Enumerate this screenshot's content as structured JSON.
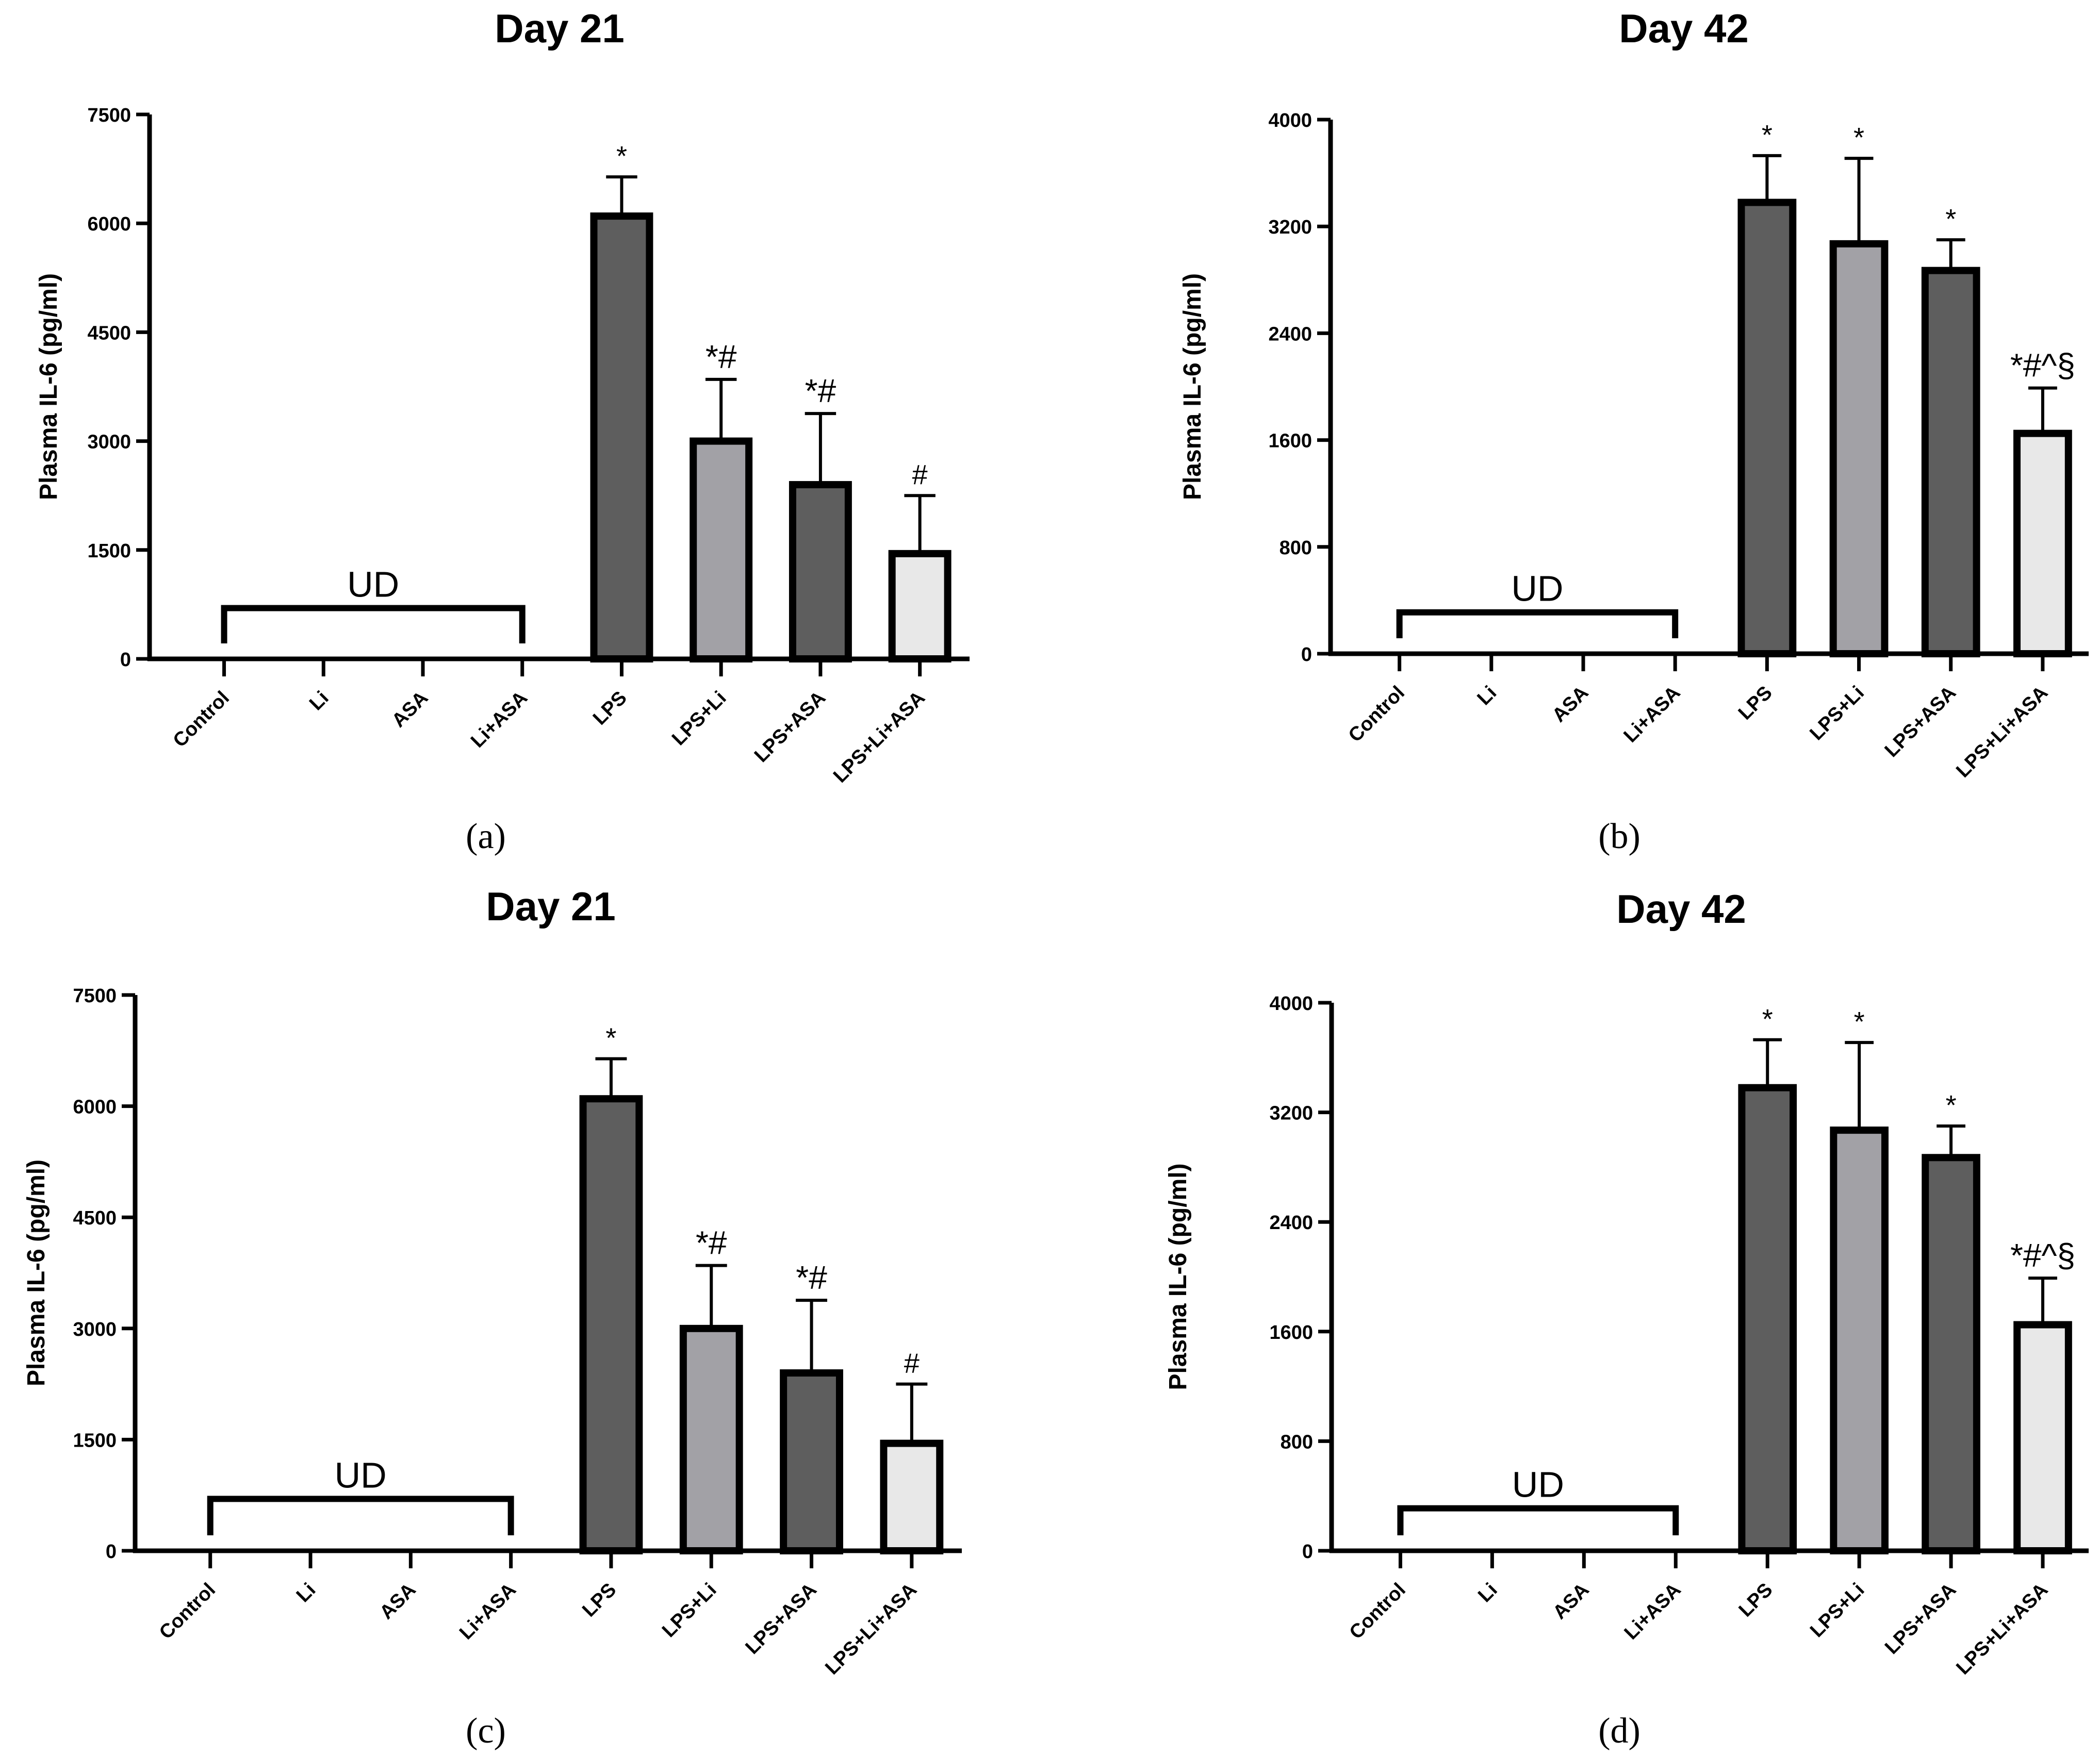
{
  "colors": {
    "dark_bar": "#5e5e5e",
    "mid_bar": "#a2a1a6",
    "light_bar": "#e8e8e8",
    "axis": "#000000"
  },
  "chart_data": [
    {
      "type": "bar",
      "panel": "(a)",
      "title": "Day 21",
      "ylabel": "Plasma IL-6 (pg/ml)",
      "ylim": [
        0,
        7500
      ],
      "yticks": [
        "0",
        "1500",
        "3000",
        "4500",
        "6000",
        "7500"
      ],
      "categories": [
        "Control",
        "Li",
        "ASA",
        "Li+ASA",
        "LPS",
        "LPS+Li",
        "LPS+ASA",
        "LPS+Li+ASA"
      ],
      "values": [
        null,
        null,
        null,
        null,
        6100,
        3000,
        2400,
        1450
      ],
      "errors": [
        null,
        null,
        null,
        null,
        540,
        850,
        980,
        800
      ],
      "fills": [
        null,
        null,
        null,
        null,
        "dark",
        "mid",
        "dark",
        "light"
      ],
      "significance": [
        "",
        "",
        "",
        "",
        "*",
        "*#",
        "*#",
        "#"
      ],
      "undetected": {
        "label": "UD",
        "from": 0,
        "to": 3,
        "level": 700
      }
    },
    {
      "type": "bar",
      "panel": "(b)",
      "title": "Day 42",
      "ylabel": "Plasma IL-6 (pg/ml)",
      "ylim": [
        0,
        4000
      ],
      "yticks": [
        "0",
        "800",
        "1600",
        "2400",
        "3200",
        "4000"
      ],
      "categories": [
        "Control",
        "Li",
        "ASA",
        "Li+ASA",
        "LPS",
        "LPS+Li",
        "LPS+ASA",
        "LPS+Li+ASA"
      ],
      "values": [
        null,
        null,
        null,
        null,
        3380,
        3070,
        2870,
        1650
      ],
      "errors": [
        null,
        null,
        null,
        null,
        350,
        640,
        230,
        340
      ],
      "fills": [
        null,
        null,
        null,
        null,
        "dark",
        "mid",
        "dark",
        "light"
      ],
      "significance": [
        "",
        "",
        "",
        "",
        "*",
        "*",
        "*",
        "*#^§"
      ],
      "undetected": {
        "label": "UD",
        "from": 0,
        "to": 3,
        "level": 310
      }
    },
    {
      "type": "bar",
      "panel": "(c)",
      "title": "Day 21",
      "ylabel": "Plasma IL-6 (pg/ml)",
      "ylim": [
        0,
        7500
      ],
      "yticks": [
        "0",
        "1500",
        "3000",
        "4500",
        "6000",
        "7500"
      ],
      "categories": [
        "Control",
        "Li",
        "ASA",
        "Li+ASA",
        "LPS",
        "LPS+Li",
        "LPS+ASA",
        "LPS+Li+ASA"
      ],
      "values": [
        null,
        null,
        null,
        null,
        6100,
        3000,
        2400,
        1450
      ],
      "errors": [
        null,
        null,
        null,
        null,
        540,
        850,
        980,
        800
      ],
      "fills": [
        null,
        null,
        null,
        null,
        "dark",
        "mid",
        "dark",
        "light"
      ],
      "significance": [
        "",
        "",
        "",
        "",
        "*",
        "*#",
        "*#",
        "#"
      ],
      "undetected": {
        "label": "UD",
        "from": 0,
        "to": 3,
        "level": 700
      }
    },
    {
      "type": "bar",
      "panel": "(d)",
      "title": "Day 42",
      "ylabel": "Plasma IL-6 (pg/ml)",
      "ylim": [
        0,
        4000
      ],
      "yticks": [
        "0",
        "800",
        "1600",
        "2400",
        "3200",
        "4000"
      ],
      "categories": [
        "Control",
        "Li",
        "ASA",
        "Li+ASA",
        "LPS",
        "LPS+Li",
        "LPS+ASA",
        "LPS+Li+ASA"
      ],
      "values": [
        null,
        null,
        null,
        null,
        3380,
        3070,
        2870,
        1650
      ],
      "errors": [
        null,
        null,
        null,
        null,
        350,
        640,
        230,
        340
      ],
      "fills": [
        null,
        null,
        null,
        null,
        "dark",
        "mid",
        "dark",
        "light"
      ],
      "significance": [
        "",
        "",
        "",
        "",
        "*",
        "*",
        "*",
        "*#^§"
      ],
      "undetected": {
        "label": "UD",
        "from": 0,
        "to": 3,
        "level": 310
      }
    }
  ]
}
